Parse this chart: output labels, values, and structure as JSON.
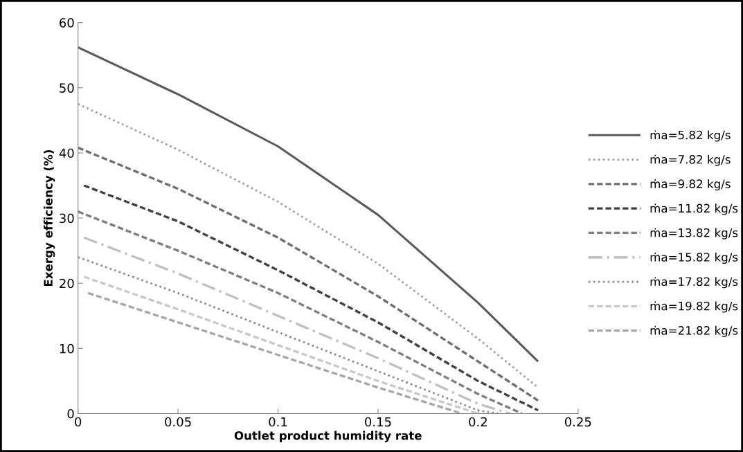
{
  "chart_data": {
    "type": "line",
    "xlabel": "Outlet product humidity rate",
    "ylabel": "Exergy efficiency (%)",
    "xlim": [
      0,
      0.25
    ],
    "xticks": [
      0,
      0.05,
      0.1,
      0.15,
      0.2,
      0.25
    ],
    "ylim": [
      0,
      60
    ],
    "yticks": [
      0,
      10,
      20,
      30,
      40,
      50,
      60
    ],
    "grid": false,
    "legend": "right",
    "marker": "none",
    "series": [
      {
        "name": "ṁa=5.82 kg/s",
        "color": "#595959",
        "line_style": "solid",
        "x": [
          0,
          0.05,
          0.1,
          0.15,
          0.2,
          0.23
        ],
        "values": [
          56.2,
          49,
          41,
          30.5,
          17,
          8
        ]
      },
      {
        "name": "ṁa=7.82 kg/s",
        "color": "#a0a0a0",
        "line_style": "dotted",
        "x": [
          0,
          0.05,
          0.1,
          0.15,
          0.2,
          0.23
        ],
        "values": [
          47.5,
          40.5,
          32.5,
          23,
          11.5,
          4
        ]
      },
      {
        "name": "ṁa=9.82 kg/s",
        "color": "#6e6e6e",
        "line_style": "dashed",
        "x": [
          0,
          0.05,
          0.1,
          0.15,
          0.2,
          0.23
        ],
        "values": [
          40.8,
          34.5,
          27,
          18,
          8,
          2
        ]
      },
      {
        "name": "ṁa=11.82 kg/s",
        "color": "#404040",
        "line_style": "dashed",
        "x": [
          0.003,
          0.05,
          0.1,
          0.15,
          0.2,
          0.23
        ],
        "values": [
          35,
          29.5,
          22,
          14,
          5,
          0.5
        ]
      },
      {
        "name": "ṁa=13.82 kg/s",
        "color": "#7f7f7f",
        "line_style": "dashed",
        "x": [
          0,
          0.05,
          0.1,
          0.15,
          0.2,
          0.222
        ],
        "values": [
          31,
          25,
          18.5,
          11,
          3,
          0
        ]
      },
      {
        "name": "ṁa=15.82 kg/s",
        "color": "#bfbfbf",
        "line_style": "dashdot",
        "x": [
          0.003,
          0.05,
          0.1,
          0.15,
          0.2,
          0.216
        ],
        "values": [
          27,
          21.5,
          15,
          8.5,
          1.5,
          0
        ]
      },
      {
        "name": "ṁa=17.82 kg/s",
        "color": "#8c8c8c",
        "line_style": "dotted",
        "x": [
          0,
          0.05,
          0.1,
          0.15,
          0.2,
          0.21
        ],
        "values": [
          24,
          18.5,
          12.5,
          6.5,
          0.5,
          0
        ]
      },
      {
        "name": "ṁa=19.82 kg/s",
        "color": "#c8c8c8",
        "line_style": "dashed",
        "x": [
          0.003,
          0.05,
          0.1,
          0.15,
          0.2
        ],
        "values": [
          21,
          16,
          10.5,
          5,
          0
        ]
      },
      {
        "name": "ṁa=21.82 kg/s",
        "color": "#a6a6a6",
        "line_style": "dashed",
        "x": [
          0.005,
          0.05,
          0.1,
          0.15,
          0.192
        ],
        "values": [
          18.5,
          14,
          9,
          4,
          0
        ]
      }
    ]
  }
}
